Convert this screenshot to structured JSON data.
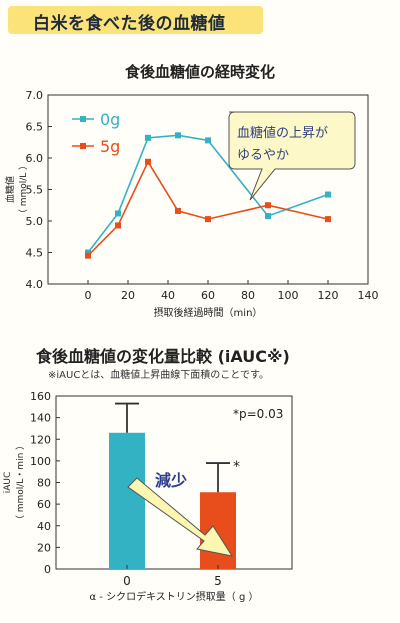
{
  "header": {
    "title": "白米を食べた後の血糖値"
  },
  "chart_data": [
    {
      "type": "line",
      "title": "食後血糖値の経時変化",
      "xlabel": "摂取後経過時間（min）",
      "ylabel": "血糖値\n（ mmol/L ）",
      "xlim": [
        -20,
        140
      ],
      "ylim": [
        4.0,
        7.0
      ],
      "xticks": [
        0,
        20,
        40,
        60,
        80,
        100,
        120,
        140
      ],
      "yticks": [
        "4.0",
        "4.5",
        "5.0",
        "5.5",
        "6.0",
        "6.5",
        "7.0"
      ],
      "legend_position": "top-left",
      "series": [
        {
          "name": "0g",
          "color": "#33b2c4",
          "marker": "square",
          "x": [
            0,
            15,
            30,
            45,
            60,
            90,
            120
          ],
          "y": [
            4.5,
            5.12,
            6.32,
            6.36,
            6.28,
            5.08,
            5.42
          ]
        },
        {
          "name": "5g",
          "color": "#e84e1b",
          "marker": "square",
          "x": [
            0,
            15,
            30,
            45,
            60,
            90,
            120
          ],
          "y": [
            4.45,
            4.93,
            5.94,
            5.16,
            5.03,
            5.25,
            5.03
          ]
        }
      ],
      "annotation": {
        "lines": [
          "血糖値の上昇が",
          "ゆるやか"
        ]
      }
    },
    {
      "type": "bar",
      "title": "食後血糖値の変化量比較 (iAUC※)",
      "note": "※iAUCとは、血糖値上昇曲線下面積のことです。",
      "xlabel": "α - シクロデキストリン摂取量（ g ）",
      "ylabel": "iAUC\n（ mmol/L・min ）",
      "ylim": [
        0,
        160
      ],
      "yticks": [
        "0",
        "20",
        "40",
        "60",
        "80",
        "100",
        "120",
        "140",
        "160"
      ],
      "categories": [
        "0",
        "5"
      ],
      "values": [
        126,
        71
      ],
      "error_upper": [
        153,
        98
      ],
      "colors": [
        "#33b2c4",
        "#e84e1b"
      ],
      "significance": "*p=0.03",
      "star": "*",
      "arrow_label": "減少"
    }
  ]
}
